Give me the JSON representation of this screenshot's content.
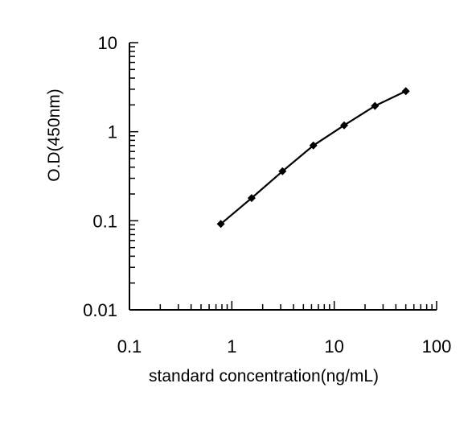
{
  "chart_data": {
    "type": "line",
    "title": "",
    "xlabel": "standard concentration(ng/mL)",
    "ylabel": "O.D(450nm)",
    "x_scale": "log",
    "y_scale": "log",
    "xlim": [
      0.1,
      100
    ],
    "ylim": [
      0.01,
      10
    ],
    "x_ticks": [
      0.1,
      1,
      10,
      100
    ],
    "x_tick_labels": [
      "0.1",
      "1",
      "10",
      "100"
    ],
    "y_ticks": [
      0.01,
      0.1,
      1,
      10
    ],
    "y_tick_labels": [
      "0.01",
      "0.1",
      "1",
      "10"
    ],
    "grid": false,
    "legend": "none",
    "series": [
      {
        "marker": "diamond",
        "color": "#000000",
        "x": [
          0.78,
          1.56,
          3.12,
          6.25,
          12.5,
          25,
          50
        ],
        "y": [
          0.092,
          0.18,
          0.36,
          0.7,
          1.18,
          1.95,
          2.85
        ]
      }
    ]
  }
}
